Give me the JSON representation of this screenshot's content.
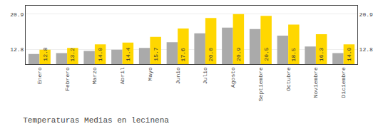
{
  "chart_data": {
    "type": "bar",
    "title": "Temperaturas Medias en lecinena",
    "categories": [
      "Enero",
      "Febrero",
      "Marzo",
      "Abril",
      "Mayo",
      "Junio",
      "Julio",
      "Agosto",
      "Septiembre",
      "Octubre",
      "Noviembre",
      "Diciembre"
    ],
    "series": [
      {
        "color": "#AAAAAA",
        "values": [
          11.8,
          12.0,
          12.5,
          12.8,
          13.2,
          14.5,
          16.5,
          17.8,
          17.5,
          16.0,
          13.5,
          12.0
        ]
      },
      {
        "color": "#FFD700",
        "values": [
          12.8,
          13.2,
          14.0,
          14.4,
          15.7,
          17.6,
          20.0,
          20.9,
          20.5,
          18.5,
          16.3,
          14.0
        ],
        "value_labels": [
          "12.8",
          "13.2",
          "14.0",
          "14.4",
          "15.7",
          "17.6",
          "20.0",
          "20.9",
          "20.5",
          "18.5",
          "16.3",
          "14.0"
        ]
      }
    ],
    "ylim": [
      9.5,
      22.8
    ],
    "yticks": [
      12.8,
      20.9
    ],
    "y2lim": [
      9.5,
      22.8
    ],
    "y2ticks": [
      12.8,
      20.9
    ],
    "grid": true,
    "data_labels": true
  }
}
